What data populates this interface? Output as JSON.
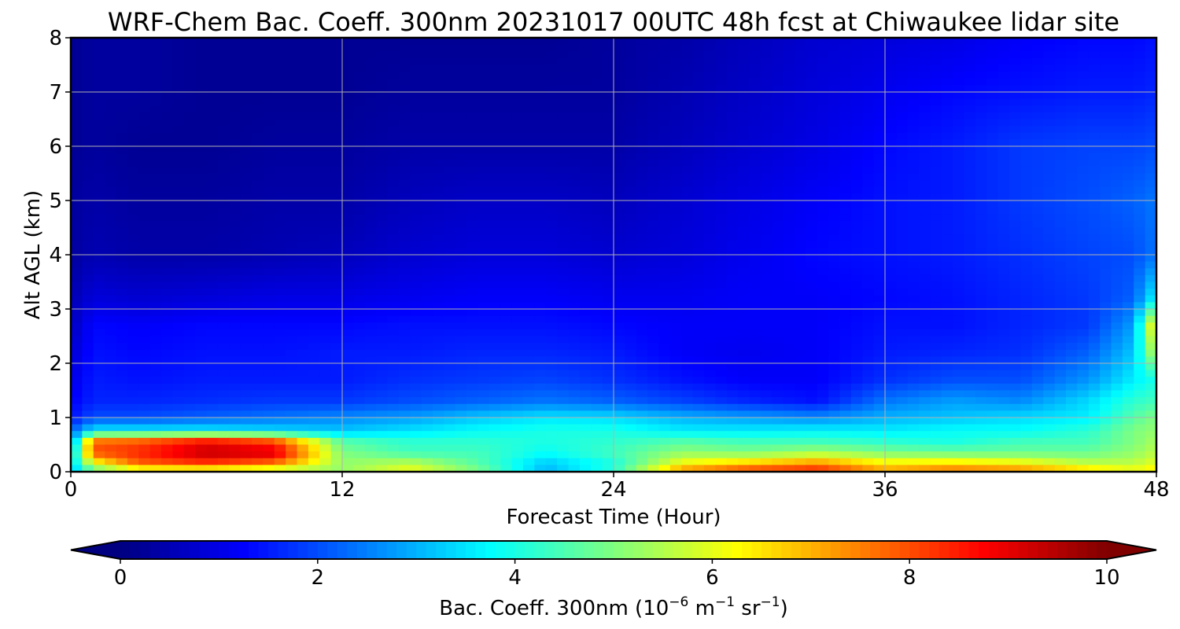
{
  "chart_data": {
    "type": "heatmap",
    "title": "WRF-Chem Bac. Coeff. 300nm  20231017 00UTC 48h fcst at Chiwaukee lidar site",
    "xlabel": "Forecast Time (Hour)",
    "ylabel": "Alt AGL (km)",
    "xlim": [
      0,
      48
    ],
    "ylim": [
      0,
      8
    ],
    "xticks": [
      "0",
      "12",
      "24",
      "36",
      "48"
    ],
    "yticks": [
      "0",
      "1",
      "2",
      "3",
      "4",
      "5",
      "6",
      "7",
      "8"
    ],
    "grid": true,
    "colorscale": "jet",
    "colorbar": {
      "label_main": "Bac. Coeff. 300nm  (10",
      "label_exp1": "−6",
      "label_mid": " m",
      "label_exp2": "−1",
      "label_mid2": " sr",
      "label_exp3": "−1",
      "label_end": ")",
      "ticks": [
        "0",
        "2",
        "4",
        "6",
        "8",
        "10"
      ],
      "range": [
        0,
        10
      ],
      "extend": "both",
      "placement": "bottom"
    },
    "x": [
      0,
      1,
      3,
      6,
      9,
      12,
      15,
      18,
      21,
      24,
      27,
      30,
      33,
      36,
      39,
      42,
      45,
      47,
      48
    ],
    "y": [
      0,
      0.15,
      0.35,
      0.55,
      0.75,
      1.0,
      1.3,
      1.7,
      2.2,
      2.7,
      3.2,
      4.0,
      5.0,
      6.0,
      7.0,
      8.0
    ],
    "values": [
      [
        3.0,
        4.5,
        5.5,
        5.5,
        5.2,
        5.2,
        6.2,
        5.0,
        3.0,
        4.2,
        7.5,
        8.4,
        8.6,
        7.3,
        7.8,
        7.6,
        6.8,
        6.2,
        6.5
      ],
      [
        3.2,
        6.0,
        7.8,
        8.2,
        7.6,
        5.2,
        5.6,
        4.6,
        3.2,
        4.0,
        6.2,
        6.8,
        7.4,
        6.4,
        6.6,
        6.3,
        5.6,
        5.6,
        6.0
      ],
      [
        3.0,
        8.0,
        8.4,
        9.4,
        9.2,
        5.0,
        4.4,
        4.4,
        3.8,
        4.4,
        5.2,
        5.0,
        5.4,
        5.0,
        4.8,
        4.8,
        4.8,
        5.2,
        5.6
      ],
      [
        2.4,
        7.8,
        8.0,
        8.8,
        8.2,
        4.6,
        4.2,
        4.2,
        4.0,
        4.2,
        4.6,
        4.4,
        4.4,
        4.2,
        4.0,
        4.4,
        4.4,
        5.0,
        5.4
      ],
      [
        2.2,
        3.6,
        3.6,
        3.6,
        3.4,
        3.2,
        3.5,
        3.8,
        4.0,
        4.0,
        3.6,
        3.6,
        3.7,
        3.6,
        3.8,
        3.8,
        4.2,
        5.0,
        5.2
      ],
      [
        1.4,
        2.0,
        2.0,
        2.2,
        2.4,
        2.6,
        2.8,
        3.2,
        3.5,
        3.4,
        3.0,
        2.8,
        2.6,
        3.0,
        3.2,
        3.4,
        3.6,
        4.6,
        5.0
      ],
      [
        1.2,
        1.6,
        1.6,
        1.7,
        1.8,
        1.8,
        2.0,
        2.2,
        2.4,
        2.2,
        1.9,
        1.6,
        1.4,
        2.4,
        2.8,
        2.6,
        3.4,
        4.2,
        4.4
      ],
      [
        1.0,
        1.5,
        1.4,
        1.5,
        1.5,
        1.5,
        1.7,
        1.8,
        1.9,
        1.7,
        1.4,
        1.2,
        1.2,
        1.7,
        2.0,
        2.0,
        2.7,
        3.6,
        4.0
      ],
      [
        0.8,
        1.4,
        1.3,
        1.4,
        1.4,
        1.5,
        1.5,
        1.6,
        1.6,
        1.5,
        1.2,
        1.1,
        1.2,
        1.5,
        1.6,
        1.7,
        2.2,
        3.2,
        5.8
      ],
      [
        0.6,
        1.3,
        1.2,
        1.3,
        1.3,
        1.3,
        1.4,
        1.4,
        1.4,
        1.3,
        1.2,
        1.2,
        1.2,
        1.4,
        1.4,
        1.6,
        1.8,
        2.8,
        6.8
      ],
      [
        0.5,
        0.9,
        0.8,
        0.9,
        1.0,
        1.0,
        1.1,
        1.2,
        1.2,
        1.1,
        1.1,
        1.2,
        1.2,
        1.3,
        1.4,
        1.6,
        1.8,
        2.2,
        3.8
      ],
      [
        0.3,
        0.5,
        0.4,
        0.4,
        0.5,
        0.6,
        0.8,
        0.9,
        0.9,
        0.8,
        0.9,
        1.1,
        1.3,
        1.4,
        1.5,
        1.7,
        1.9,
        2.0,
        2.4
      ],
      [
        0.3,
        0.4,
        0.3,
        0.3,
        0.4,
        0.4,
        0.6,
        0.7,
        0.7,
        0.6,
        0.8,
        1.0,
        1.2,
        1.4,
        1.5,
        1.8,
        2.0,
        2.2,
        2.4
      ],
      [
        0.2,
        0.3,
        0.2,
        0.2,
        0.3,
        0.3,
        0.4,
        0.4,
        0.4,
        0.4,
        0.6,
        0.8,
        1.0,
        1.3,
        1.5,
        1.8,
        1.9,
        1.9,
        2.0
      ],
      [
        0.2,
        0.3,
        0.3,
        0.2,
        0.2,
        0.2,
        0.3,
        0.3,
        0.3,
        0.3,
        0.5,
        0.7,
        0.9,
        1.1,
        1.3,
        1.4,
        1.5,
        1.5,
        1.6
      ],
      [
        0.2,
        0.3,
        0.3,
        0.2,
        0.2,
        0.2,
        0.2,
        0.2,
        0.2,
        0.3,
        0.4,
        0.6,
        0.8,
        0.9,
        1.0,
        1.2,
        1.3,
        1.3,
        1.4
      ]
    ]
  }
}
